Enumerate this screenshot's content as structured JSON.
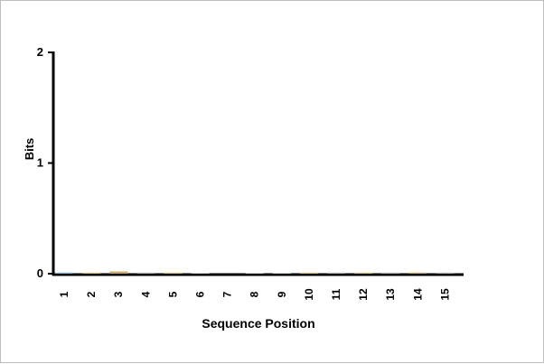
{
  "chart_data": {
    "type": "bar",
    "title": "",
    "xlabel": "Sequence Position",
    "ylabel": "Bits",
    "ylim": [
      0,
      2
    ],
    "yticks": [
      "0",
      "1",
      "2"
    ],
    "categories": [
      "1",
      "2",
      "3",
      "4",
      "5",
      "6",
      "7",
      "8",
      "9",
      "10",
      "11",
      "12",
      "13",
      "14",
      "15"
    ],
    "values": [
      0.01,
      0.01,
      0.02,
      0.01,
      0.01,
      0.005,
      0.0,
      0.005,
      0.005,
      0.01,
      0.01,
      0.01,
      0.01,
      0.01,
      0.01
    ],
    "colors": [
      "#7fb3d5",
      "#d4c27a",
      "#c9a86a",
      "#b7b7b7",
      "#d4c27a",
      "#b7b7b7",
      "#b7b7b7",
      "#b7b7b7",
      "#b7b7b7",
      "#d4c27a",
      "#b7b7b7",
      "#d4c27a",
      "#b7b7b7",
      "#c9a86a",
      "#b7b7b7"
    ],
    "grid": false,
    "legend": "none"
  }
}
